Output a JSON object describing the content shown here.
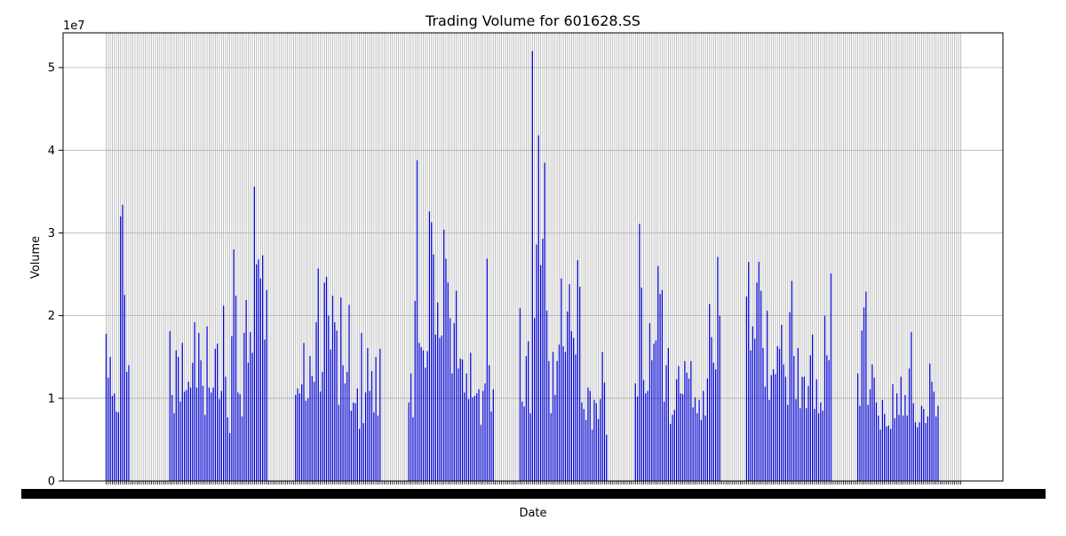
{
  "chart_data": {
    "type": "bar",
    "title": "Trading Volume for 601628.SS",
    "xlabel": "Date",
    "ylabel": "Volume",
    "y_offset_label": "1e7",
    "y_scale": 10000000,
    "ylim": [
      0,
      5.42
    ],
    "yticks": [
      0,
      1,
      2,
      3,
      4,
      5
    ],
    "ytick_labels": [
      "0",
      "1",
      "2",
      "3",
      "4",
      "5"
    ],
    "grid": true,
    "bar_color": "#0000cc",
    "grid_color": "#b0b0b0",
    "xtick_labels_note": "dense overlapping date labels (unreadable)",
    "volumes_1e7": [
      1.78,
      1.25,
      1.5,
      1.03,
      1.06,
      0.84,
      0.83,
      3.2,
      3.34,
      2.25,
      1.32,
      1.4,
      null,
      null,
      null,
      null,
      null,
      null,
      null,
      null,
      null,
      null,
      null,
      null,
      null,
      null,
      null,
      null,
      null,
      null,
      null,
      1.81,
      1.04,
      0.82,
      1.58,
      1.5,
      0.96,
      1.67,
      1.08,
      1.1,
      1.2,
      1.13,
      1.43,
      1.92,
      1.13,
      1.79,
      1.46,
      1.15,
      0.8,
      1.87,
      1.13,
      1.07,
      1.13,
      1.6,
      1.66,
      0.99,
      1.09,
      2.12,
      1.26,
      0.77,
      0.58,
      1.75,
      2.8,
      2.24,
      1.07,
      1.05,
      0.78,
      1.79,
      2.19,
      1.43,
      1.8,
      1.55,
      3.56,
      2.62,
      2.68,
      2.45,
      2.73,
      1.71,
      2.31,
      null,
      null,
      null,
      null,
      null,
      null,
      null,
      null,
      null,
      null,
      null,
      null,
      null,
      1.04,
      1.12,
      1.06,
      1.17,
      1.67,
      0.97,
      1.0,
      1.51,
      1.27,
      1.2,
      1.92,
      2.57,
      1.08,
      1.32,
      2.4,
      2.47,
      2.0,
      1.59,
      2.24,
      1.92,
      1.82,
      0.92,
      2.22,
      1.4,
      1.18,
      1.32,
      2.13,
      0.85,
      0.95,
      0.94,
      1.12,
      0.63,
      1.79,
      0.7,
      1.07,
      1.61,
      1.09,
      1.33,
      0.83,
      1.5,
      0.79,
      1.6,
      null,
      null,
      null,
      null,
      null,
      null,
      null,
      null,
      null,
      null,
      null,
      null,
      null,
      0.95,
      1.3,
      0.77,
      2.18,
      3.88,
      1.67,
      1.62,
      1.58,
      1.37,
      1.57,
      3.26,
      3.13,
      2.74,
      1.77,
      2.16,
      1.73,
      1.76,
      3.04,
      2.69,
      2.4,
      1.97,
      1.3,
      1.91,
      2.3,
      1.36,
      1.48,
      1.47,
      1.07,
      1.3,
      0.99,
      1.55,
      1.01,
      1.03,
      1.06,
      1.11,
      0.68,
      1.09,
      1.18,
      2.69,
      1.4,
      0.84,
      1.11,
      null,
      null,
      null,
      null,
      null,
      null,
      null,
      null,
      null,
      null,
      null,
      null,
      2.09,
      0.96,
      0.9,
      1.51,
      1.69,
      0.82,
      5.2,
      1.97,
      2.86,
      4.18,
      2.61,
      2.93,
      3.85,
      2.06,
      1.45,
      0.82,
      1.56,
      1.04,
      1.45,
      1.65,
      2.45,
      1.63,
      1.56,
      2.05,
      2.38,
      1.81,
      1.73,
      1.53,
      2.67,
      2.35,
      0.95,
      0.87,
      0.74,
      1.13,
      1.09,
      0.62,
      0.98,
      0.94,
      0.75,
      0.99,
      1.56,
      1.19,
      0.56,
      null,
      null,
      null,
      null,
      null,
      null,
      null,
      null,
      null,
      null,
      null,
      null,
      null,
      1.18,
      1.02,
      3.11,
      2.34,
      1.22,
      1.06,
      1.09,
      1.91,
      1.46,
      1.66,
      1.7,
      2.6,
      2.26,
      2.31,
      0.96,
      1.4,
      1.61,
      0.69,
      0.8,
      0.86,
      1.23,
      1.39,
      1.06,
      1.05,
      1.45,
      1.31,
      1.24,
      1.45,
      0.89,
      1.01,
      0.82,
      0.98,
      0.74,
      1.09,
      0.79,
      1.24,
      2.14,
      1.74,
      1.43,
      1.35,
      2.71,
      2.0,
      null,
      null,
      null,
      null,
      null,
      null,
      null,
      null,
      null,
      null,
      null,
      null,
      2.23,
      2.65,
      1.58,
      1.87,
      1.72,
      2.4,
      2.65,
      2.3,
      1.61,
      1.14,
      2.06,
      0.98,
      1.28,
      1.35,
      1.29,
      1.63,
      1.6,
      1.89,
      1.41,
      1.26,
      0.92,
      2.04,
      2.42,
      1.51,
      0.99,
      1.61,
      0.88,
      1.26,
      1.26,
      0.88,
      1.15,
      1.52,
      1.77,
      0.87,
      1.23,
      0.82,
      0.95,
      0.85,
      2.0,
      1.52,
      1.46,
      2.51,
      null,
      null,
      null,
      null,
      null,
      null,
      null,
      null,
      null,
      null,
      null,
      null,
      1.3,
      0.91,
      1.82,
      2.1,
      2.29,
      0.92,
      1.11,
      1.41,
      1.25,
      0.95,
      0.79,
      0.62,
      0.98,
      0.81,
      0.66,
      0.67,
      0.63,
      1.17,
      0.76,
      1.06,
      0.8,
      1.26,
      0.79,
      1.04,
      0.79,
      1.36,
      1.8,
      0.94,
      0.71,
      0.65,
      0.71,
      0.91,
      0.87,
      0.7,
      0.78,
      1.42,
      1.2,
      1.08,
      0.78,
      0.91,
      null,
      null,
      null,
      null,
      null,
      null,
      null,
      null,
      null,
      null,
      null
    ]
  }
}
